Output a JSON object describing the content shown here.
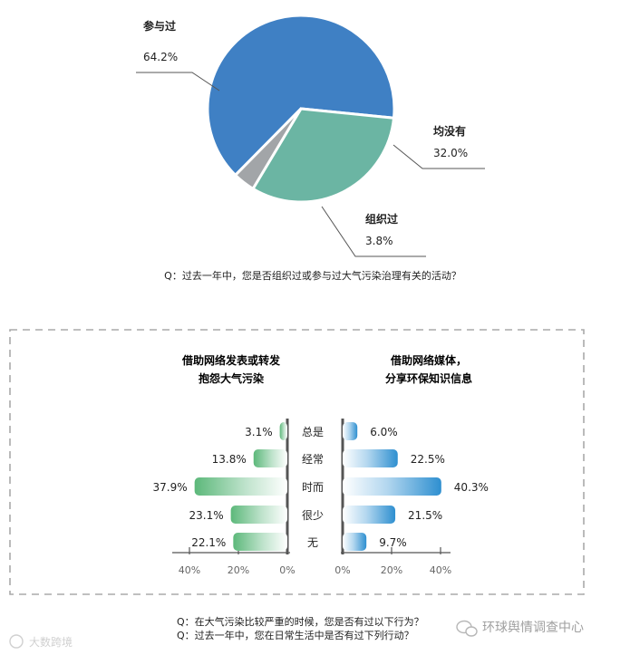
{
  "chart_data": [
    {
      "type": "pie",
      "slices": [
        {
          "label": "参与过",
          "value": 64.2,
          "display": "64.2%",
          "color": "#3f80c4"
        },
        {
          "label": "均没有",
          "value": 32.0,
          "display": "32.0%",
          "color": "#6bb5a3"
        },
        {
          "label": "组织过",
          "value": 3.8,
          "display": "3.8%",
          "color": "#a2a5a8"
        }
      ],
      "caption": "Q：过去一年中，您是否组织过或参与过大气污染治理有关的活动？"
    },
    {
      "type": "bar",
      "orientation": "horizontal-butterfly",
      "categories": [
        "总是",
        "经常",
        "时而",
        "很少",
        "无"
      ],
      "series": [
        {
          "name": "借助网络发表或转发抱怨大气污染",
          "title_lines": [
            "借助网络发表或转发",
            "抱怨大气污染"
          ],
          "values": [
            3.1,
            13.8,
            37.9,
            23.1,
            22.1
          ],
          "labels": [
            "3.1%",
            "13.8%",
            "37.9%",
            "23.1%",
            "22.1%"
          ],
          "color": "#5cb87a",
          "direction": "left"
        },
        {
          "name": "借助网络媒体，分享环保知识信息",
          "title_lines": [
            "借助网络媒体，",
            "分享环保知识信息"
          ],
          "values": [
            6.0,
            22.5,
            40.3,
            21.5,
            9.7
          ],
          "labels": [
            "6.0%",
            "22.5%",
            "40.3%",
            "21.5%",
            "9.7%"
          ],
          "color": "#2e8fd0",
          "direction": "right"
        }
      ],
      "x_ticks_left": [
        "40%",
        "20%",
        "0%"
      ],
      "x_ticks_right": [
        "0%",
        "20%",
        "40%"
      ],
      "xlim": [
        0,
        40
      ],
      "captions": [
        "Q：在大气污染比较严重的时候，您是否有过以下行为？",
        "Q：过去一年中，您在日常生活中是否有过下列行动？"
      ]
    }
  ],
  "watermarks": {
    "left": "大数跨境",
    "right": "环球舆情调查中心"
  }
}
